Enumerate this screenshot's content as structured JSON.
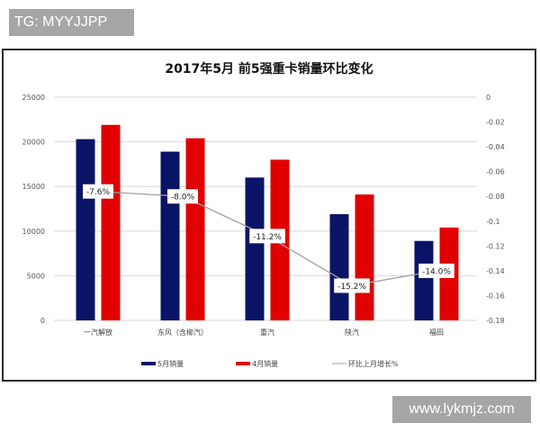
{
  "watermarks": {
    "top": "TG: MYYJJPP",
    "bottom": "www.lykmjz.com"
  },
  "chart_data": {
    "type": "bar",
    "title": "2017年5月 前5强重卡销量环比变化",
    "categories": [
      "一汽解放",
      "东风（含柳汽）",
      "重汽",
      "陕汽",
      "福田"
    ],
    "series": [
      {
        "name": "5月销量",
        "type": "bar",
        "axis": "left",
        "color": "#0a1466",
        "values": [
          20300,
          18900,
          16000,
          11900,
          8900
        ]
      },
      {
        "name": "4月销量",
        "type": "bar",
        "axis": "left",
        "color": "#e00000",
        "values": [
          21900,
          20400,
          18000,
          14100,
          10400
        ]
      },
      {
        "name": "环比上月增长%",
        "type": "line",
        "axis": "right",
        "color": "#a0a0a0",
        "values": [
          -0.076,
          -0.08,
          -0.112,
          -0.152,
          -0.14
        ]
      }
    ],
    "data_labels": [
      "-7.6%",
      "-8.0%",
      "-11.2%",
      "-15.2%",
      "-14.0%"
    ],
    "left_axis": {
      "ylim": [
        0,
        25000
      ],
      "ticks": [
        "0",
        "5000",
        "10000",
        "15000",
        "20000",
        "25000"
      ]
    },
    "right_axis": {
      "ylim": [
        -0.18,
        0
      ],
      "ticks": [
        "0",
        "-0.02",
        "-0.04",
        "-0.06",
        "-0.08",
        "-0.1",
        "-0.12",
        "-0.14",
        "-0.16",
        "-0.18"
      ]
    },
    "xlabel": "",
    "ylabel": "",
    "grid": true,
    "legend": {
      "position": "bottom",
      "entries": [
        "5月销量",
        "4月销量",
        "环比上月增长%"
      ]
    }
  }
}
